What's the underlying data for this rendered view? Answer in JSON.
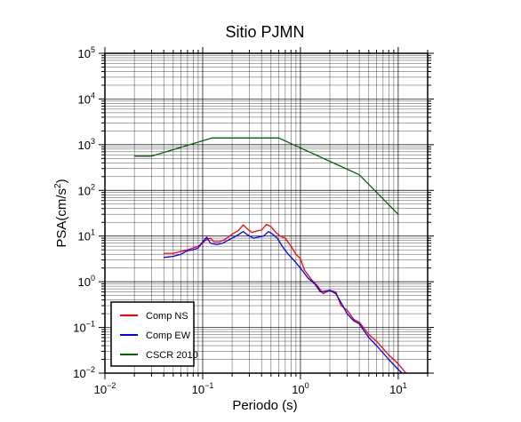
{
  "chart_data": {
    "type": "line",
    "title": "Sitio PJMN",
    "xlabel": "Periodo (s)",
    "ylabel": {
      "base": "PSA(cm/s",
      "sup": "2",
      "close": ")"
    },
    "x_scale": "log",
    "y_scale": "log",
    "xlim": [
      0.01,
      20
    ],
    "ylim": [
      0.01,
      100000
    ],
    "x_ticks": [
      {
        "value": 0.01,
        "base": "10",
        "exp": "−2"
      },
      {
        "value": 0.1,
        "base": "10",
        "exp": "−1"
      },
      {
        "value": 1,
        "base": "10",
        "exp": "0"
      },
      {
        "value": 10,
        "base": "10",
        "exp": "1"
      }
    ],
    "y_ticks": [
      {
        "value": 0.01,
        "base": "10",
        "exp": "−2"
      },
      {
        "value": 0.1,
        "base": "10",
        "exp": "−1"
      },
      {
        "value": 1,
        "base": "10",
        "exp": "0"
      },
      {
        "value": 10,
        "base": "10",
        "exp": "1"
      },
      {
        "value": 100,
        "base": "10",
        "exp": "2"
      },
      {
        "value": 1000,
        "base": "10",
        "exp": "3"
      },
      {
        "value": 10000,
        "base": "10",
        "exp": "4"
      },
      {
        "value": 100000,
        "base": "10",
        "exp": "5"
      }
    ],
    "grid": true,
    "legend_position": "bottom-left",
    "series": [
      {
        "name": "Comp NS",
        "color": "#ff0000",
        "points": [
          [
            0.04,
            4.2
          ],
          [
            0.05,
            4.2
          ],
          [
            0.06,
            4.6
          ],
          [
            0.07,
            5.0
          ],
          [
            0.08,
            5.5
          ],
          [
            0.09,
            6.0
          ],
          [
            0.1,
            7.0
          ],
          [
            0.11,
            8.5
          ],
          [
            0.12,
            9.0
          ],
          [
            0.13,
            7.5
          ],
          [
            0.15,
            7.5
          ],
          [
            0.17,
            8.5
          ],
          [
            0.2,
            11.0
          ],
          [
            0.23,
            13.0
          ],
          [
            0.26,
            17.5
          ],
          [
            0.29,
            14.0
          ],
          [
            0.32,
            12.0
          ],
          [
            0.36,
            13.0
          ],
          [
            0.4,
            13.5
          ],
          [
            0.45,
            18.0
          ],
          [
            0.5,
            16.0
          ],
          [
            0.56,
            12.0
          ],
          [
            0.62,
            10.0
          ],
          [
            0.7,
            9.0
          ],
          [
            0.8,
            6.0
          ],
          [
            0.9,
            4.0
          ],
          [
            1.0,
            3.2
          ],
          [
            1.1,
            1.8
          ],
          [
            1.3,
            1.1
          ],
          [
            1.5,
            0.8
          ],
          [
            1.7,
            0.55
          ],
          [
            2.0,
            0.65
          ],
          [
            2.3,
            0.6
          ],
          [
            2.6,
            0.3
          ],
          [
            3.0,
            0.24
          ],
          [
            3.5,
            0.15
          ],
          [
            4.0,
            0.13
          ],
          [
            5.0,
            0.07
          ],
          [
            6.0,
            0.05
          ],
          [
            8.0,
            0.025
          ],
          [
            10.0,
            0.016
          ],
          [
            12.0,
            0.01
          ]
        ]
      },
      {
        "name": "Comp EW",
        "color": "#0000ff",
        "points": [
          [
            0.04,
            3.4
          ],
          [
            0.05,
            3.6
          ],
          [
            0.06,
            4.0
          ],
          [
            0.07,
            4.8
          ],
          [
            0.08,
            5.0
          ],
          [
            0.09,
            5.5
          ],
          [
            0.1,
            7.5
          ],
          [
            0.11,
            9.5
          ],
          [
            0.12,
            7.0
          ],
          [
            0.14,
            6.5
          ],
          [
            0.16,
            7.0
          ],
          [
            0.19,
            8.5
          ],
          [
            0.22,
            10.0
          ],
          [
            0.26,
            12.5
          ],
          [
            0.29,
            10.5
          ],
          [
            0.33,
            9.0
          ],
          [
            0.37,
            9.5
          ],
          [
            0.42,
            10.0
          ],
          [
            0.47,
            12.5
          ],
          [
            0.52,
            11.0
          ],
          [
            0.58,
            9.0
          ],
          [
            0.65,
            6.0
          ],
          [
            0.75,
            4.0
          ],
          [
            0.85,
            3.0
          ],
          [
            1.0,
            2.0
          ],
          [
            1.2,
            1.2
          ],
          [
            1.4,
            0.9
          ],
          [
            1.6,
            0.6
          ],
          [
            2.0,
            0.65
          ],
          [
            2.3,
            0.55
          ],
          [
            2.6,
            0.35
          ],
          [
            3.0,
            0.2
          ],
          [
            3.5,
            0.14
          ],
          [
            4.0,
            0.12
          ],
          [
            5.0,
            0.06
          ],
          [
            6.0,
            0.04
          ],
          [
            8.0,
            0.02
          ],
          [
            10.0,
            0.012
          ],
          [
            11.0,
            0.01
          ]
        ]
      },
      {
        "name": "CSCR 2010",
        "color": "#006400",
        "points": [
          [
            0.02,
            560
          ],
          [
            0.03,
            560
          ],
          [
            0.125,
            1400
          ],
          [
            0.6,
            1400
          ],
          [
            4.0,
            220
          ],
          [
            10.0,
            30
          ]
        ]
      }
    ]
  }
}
